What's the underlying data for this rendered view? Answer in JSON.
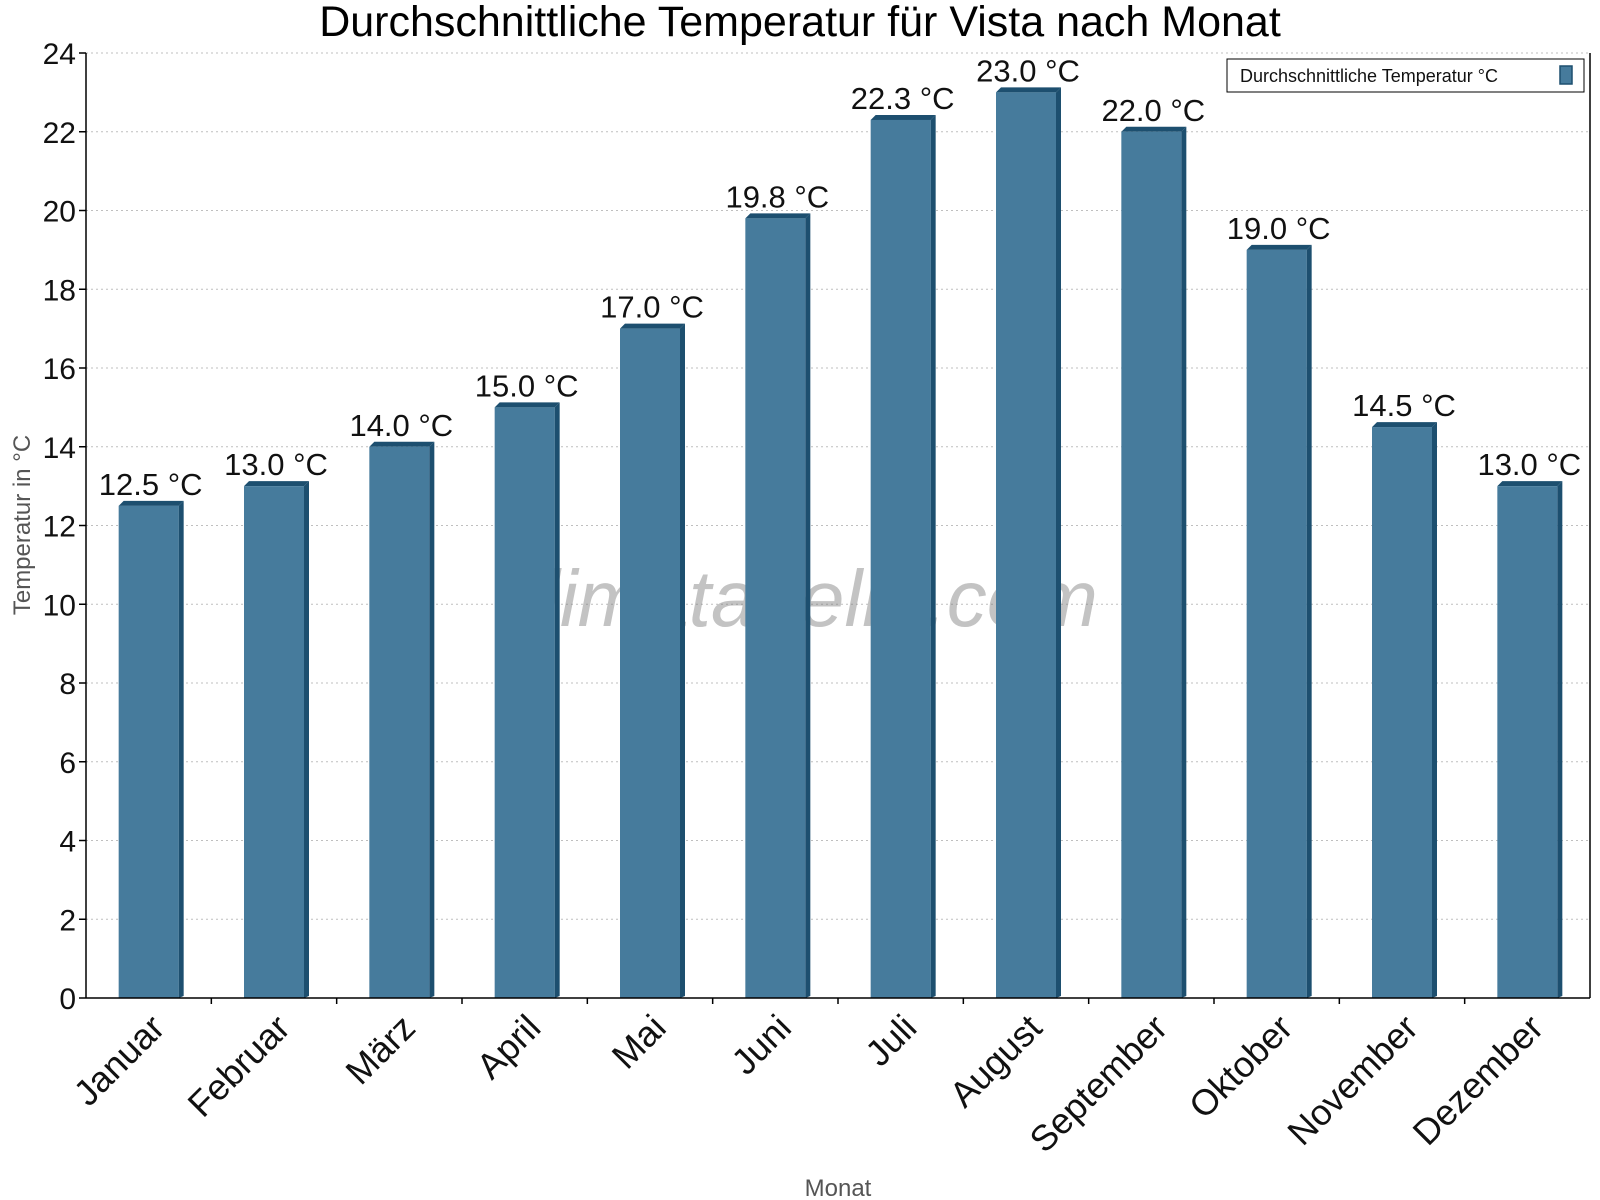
{
  "chart_data": {
    "type": "bar",
    "title": "Durchschnittliche Temperatur für Vista nach Monat",
    "xlabel": "Monat",
    "ylabel": "Temperatur in °C",
    "ylim": [
      0,
      24
    ],
    "yticks": [
      "0",
      "2",
      "4",
      "6",
      "8",
      "10",
      "12",
      "14",
      "16",
      "18",
      "20",
      "22",
      "24"
    ],
    "grid": true,
    "legend_position": "top-right",
    "categories": [
      "Januar",
      "Februar",
      "März",
      "April",
      "Mai",
      "Juni",
      "Juli",
      "August",
      "September",
      "Oktober",
      "November",
      "Dezember"
    ],
    "series": [
      {
        "name": "Durchschnittliche Temperatur °C",
        "values": [
          12.5,
          13.0,
          14.0,
          15.0,
          17.0,
          19.8,
          22.3,
          23.0,
          22.0,
          19.0,
          14.5,
          13.0
        ],
        "labels": [
          "12.5 °C",
          "13.0 °C",
          "14.0 °C",
          "15.0 °C",
          "17.0 °C",
          "19.8 °C",
          "22.3 °C",
          "23.0 °C",
          "22.0 °C",
          "19.0 °C",
          "14.5 °C",
          "13.0 °C"
        ],
        "color": "#467b9c",
        "edge_color": "#1d4f6f"
      }
    ],
    "watermark": "klimatabelle.com"
  }
}
